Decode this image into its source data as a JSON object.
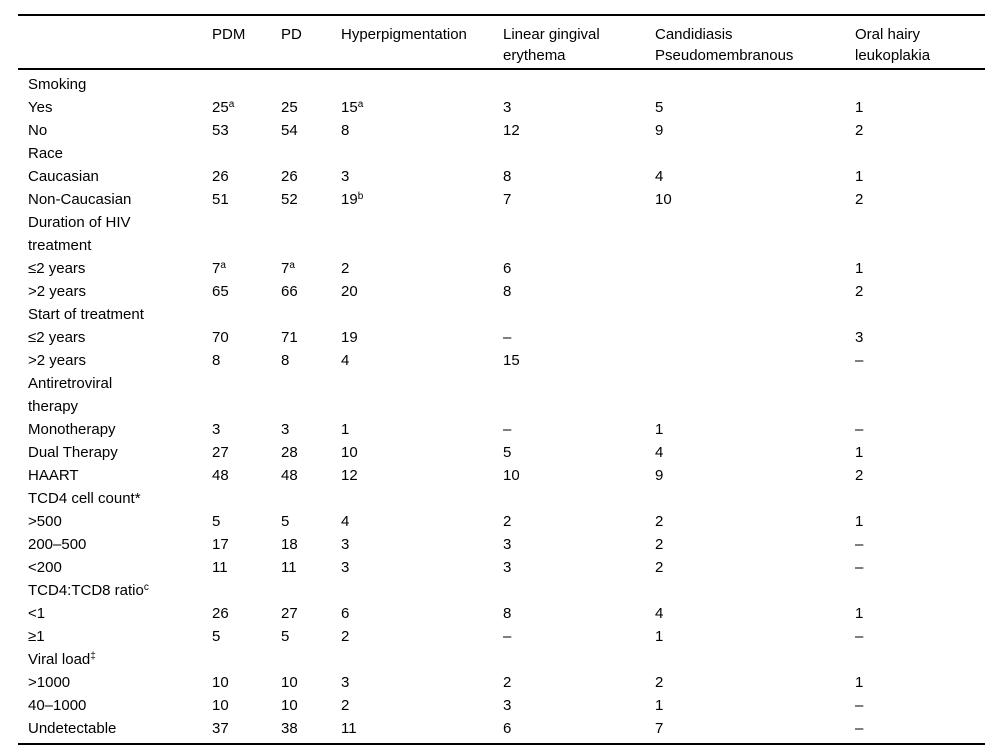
{
  "colors": {
    "background": "#ffffff",
    "text": "#000000",
    "rule": "#000000"
  },
  "table": {
    "corner_label": "",
    "columns": [
      "PDM",
      "PD",
      "Hyperpigmentation",
      "Linear gingival erythema",
      "Candidiasis Pseudomembranous",
      "Oral hairy leukoplakia"
    ],
    "rows": [
      {
        "label": "Smoking",
        "type": "section",
        "values": [
          "",
          "",
          "",
          "",
          "",
          ""
        ]
      },
      {
        "label": "Yes",
        "type": "data",
        "values": [
          "25^a",
          "25",
          "15^a",
          "3",
          "5",
          "1"
        ]
      },
      {
        "label": "No",
        "type": "data",
        "values": [
          "53",
          "54",
          "8",
          "12",
          "9",
          "2"
        ]
      },
      {
        "label": "Race",
        "type": "section",
        "values": [
          "",
          "",
          "",
          "",
          "",
          ""
        ]
      },
      {
        "label": "Caucasian",
        "type": "data",
        "values": [
          "26",
          "26",
          "3",
          "8",
          "4",
          "1"
        ]
      },
      {
        "label": "Non-Caucasian",
        "type": "data",
        "values": [
          "51",
          "52",
          "19^b",
          "7",
          "10",
          "2"
        ]
      },
      {
        "label": "Duration of HIV treatment",
        "type": "section",
        "values": [
          "",
          "",
          "",
          "",
          "",
          ""
        ]
      },
      {
        "label": "≤2 years",
        "type": "data",
        "values": [
          "7^a",
          "7^a",
          "2",
          "6",
          "",
          "1"
        ]
      },
      {
        "label": ">2 years",
        "type": "data",
        "values": [
          "65",
          "66",
          "20",
          "8",
          "",
          "2"
        ]
      },
      {
        "label": "Start of treatment",
        "type": "section",
        "values": [
          "",
          "",
          "",
          "",
          "",
          ""
        ]
      },
      {
        "label": "≤2 years",
        "type": "data",
        "values": [
          "70",
          "71",
          "19",
          "–",
          "",
          "3"
        ]
      },
      {
        "label": ">2 years",
        "type": "data",
        "values": [
          "8",
          "8",
          "4",
          "15",
          "",
          "–"
        ]
      },
      {
        "label": "Antiretroviral therapy",
        "type": "section",
        "values": [
          "",
          "",
          "",
          "",
          "",
          ""
        ]
      },
      {
        "label": "Monotherapy",
        "type": "data",
        "values": [
          "3",
          "3",
          "1",
          "–",
          "1",
          "–"
        ]
      },
      {
        "label": "Dual Therapy",
        "type": "data",
        "values": [
          "27",
          "28",
          "10",
          "5",
          "4",
          "1"
        ]
      },
      {
        "label": "HAART",
        "type": "data",
        "values": [
          "48",
          "48",
          "12",
          "10",
          "9",
          "2"
        ]
      },
      {
        "label": "TCD4 cell count*",
        "type": "section",
        "values": [
          "",
          "",
          "",
          "",
          "",
          ""
        ]
      },
      {
        "label": ">500",
        "type": "data",
        "values": [
          "5",
          "5",
          "4",
          "2",
          "2",
          "1"
        ]
      },
      {
        "label": "200–500",
        "type": "data",
        "values": [
          "17",
          "18",
          "3",
          "3",
          "2",
          "–"
        ]
      },
      {
        "label": "<200",
        "type": "data",
        "values": [
          "11",
          "11",
          "3",
          "3",
          "2",
          "–"
        ]
      },
      {
        "label": "TCD4:TCD8 ratio^c",
        "type": "section",
        "values": [
          "",
          "",
          "",
          "",
          "",
          ""
        ]
      },
      {
        "label": "<1",
        "type": "data",
        "values": [
          "26",
          "27",
          "6",
          "8",
          "4",
          "1"
        ]
      },
      {
        "label": "≥1",
        "type": "data",
        "values": [
          "5",
          "5",
          "2",
          "–",
          "1",
          "–"
        ]
      },
      {
        "label": "Viral load^‡",
        "type": "section",
        "values": [
          "",
          "",
          "",
          "",
          "",
          ""
        ]
      },
      {
        "label": ">1000",
        "type": "data",
        "values": [
          "10",
          "10",
          "3",
          "2",
          "2",
          "1"
        ]
      },
      {
        "label": "40–1000",
        "type": "data",
        "values": [
          "10",
          "10",
          "2",
          "3",
          "1",
          "–"
        ]
      },
      {
        "label": "Undetectable",
        "type": "data",
        "values": [
          "37",
          "38",
          "11",
          "6",
          "7",
          "–"
        ]
      }
    ]
  }
}
